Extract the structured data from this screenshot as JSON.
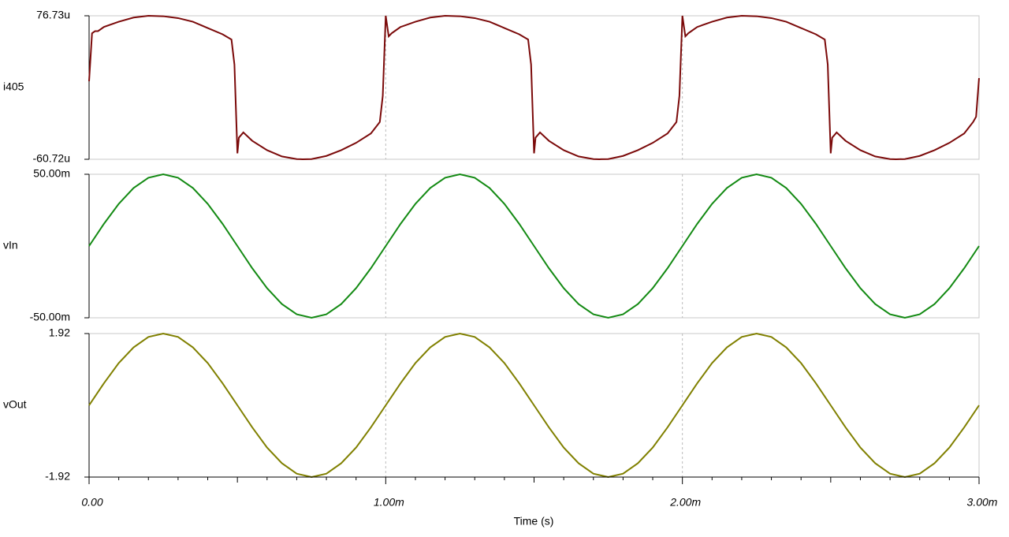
{
  "chart_data": [
    {
      "type": "line",
      "x": [
        0,
        0.01,
        0.02,
        0.03,
        0.05,
        0.1,
        0.15,
        0.2,
        0.25,
        0.3,
        0.35,
        0.4,
        0.45,
        0.48,
        0.49,
        0.5,
        0.505,
        0.52,
        0.55,
        0.6,
        0.65,
        0.7,
        0.72,
        0.75,
        0.8,
        0.85,
        0.9,
        0.95,
        0.98,
        0.99,
        1,
        1.01,
        1.02,
        1.03,
        1.05,
        1.1,
        1.15,
        1.2,
        1.25,
        1.3,
        1.35,
        1.4,
        1.45,
        1.48,
        1.49,
        1.5,
        1.505,
        1.52,
        1.55,
        1.6,
        1.65,
        1.7,
        1.72,
        1.75,
        1.8,
        1.85,
        1.9,
        1.95,
        1.98,
        1.99,
        2,
        2.01,
        2.02,
        2.03,
        2.05,
        2.1,
        2.15,
        2.2,
        2.25,
        2.3,
        2.35,
        2.4,
        2.45,
        2.48,
        2.49,
        2.5,
        2.505,
        2.52,
        2.55,
        2.6,
        2.65,
        2.7,
        2.72,
        2.75,
        2.8,
        2.85,
        2.9,
        2.95,
        2.98,
        2.99,
        3
      ],
      "series": [
        {
          "name": "i405",
          "color": "#7b0a0a",
          "values": [
            14,
            60,
            62,
            62,
            66,
            71,
            75,
            76.7,
            76.3,
            74.5,
            71,
            65,
            59,
            54,
            30,
            -55,
            -40,
            -35,
            -43,
            -52,
            -58,
            -60.5,
            -60.7,
            -60.5,
            -57.5,
            -52,
            -45,
            -36,
            -25,
            0,
            76.7,
            57,
            60,
            62,
            66,
            71,
            75,
            76.7,
            76.3,
            74.5,
            71,
            65,
            59,
            54,
            30,
            -55,
            -40,
            -35,
            -43,
            -52,
            -58,
            -60.5,
            -60.7,
            -60.5,
            -57.5,
            -52,
            -45,
            -36,
            -25,
            0,
            76.7,
            57,
            60,
            62,
            66,
            71,
            75,
            76.7,
            76.3,
            74.5,
            71,
            65,
            59,
            54,
            30,
            -55,
            -40,
            -35,
            -43,
            -52,
            -58,
            -60.5,
            -60.7,
            -60.5,
            -57.5,
            -52,
            -45,
            -36,
            -25,
            -20,
            17
          ]
        }
      ],
      "ylim": [
        -60.72,
        76.73
      ],
      "yticks": [
        {
          "value": -60.72,
          "label": "-60.72u"
        },
        {
          "value": 76.73,
          "label": "76.73u"
        }
      ]
    },
    {
      "type": "line",
      "x": [
        0,
        0.05,
        0.1,
        0.15,
        0.2,
        0.25,
        0.3,
        0.35,
        0.4,
        0.45,
        0.5,
        0.55,
        0.6,
        0.65,
        0.7,
        0.75,
        0.8,
        0.85,
        0.9,
        0.95,
        1,
        1.05,
        1.1,
        1.15,
        1.2,
        1.25,
        1.3,
        1.35,
        1.4,
        1.45,
        1.5,
        1.55,
        1.6,
        1.65,
        1.7,
        1.75,
        1.8,
        1.85,
        1.9,
        1.95,
        2,
        2.05,
        2.1,
        2.15,
        2.2,
        2.25,
        2.3,
        2.35,
        2.4,
        2.45,
        2.5,
        2.55,
        2.6,
        2.65,
        2.7,
        2.75,
        2.8,
        2.85,
        2.9,
        2.95,
        3
      ],
      "series": [
        {
          "name": "vIn",
          "color": "#138a13",
          "values": [
            0,
            15.45,
            29.39,
            40.45,
            47.55,
            50,
            47.55,
            40.45,
            29.39,
            15.45,
            0,
            -15.45,
            -29.39,
            -40.45,
            -47.55,
            -50,
            -47.55,
            -40.45,
            -29.39,
            -15.45,
            0,
            15.45,
            29.39,
            40.45,
            47.55,
            50,
            47.55,
            40.45,
            29.39,
            15.45,
            0,
            -15.45,
            -29.39,
            -40.45,
            -47.55,
            -50,
            -47.55,
            -40.45,
            -29.39,
            -15.45,
            0,
            15.45,
            29.39,
            40.45,
            47.55,
            50,
            47.55,
            40.45,
            29.39,
            15.45,
            0,
            -15.45,
            -29.39,
            -40.45,
            -47.55,
            -50,
            -47.55,
            -40.45,
            -29.39,
            -15.45,
            0
          ]
        }
      ],
      "ylim": [
        -50,
        50
      ],
      "yticks": [
        {
          "value": -50,
          "label": "-50.00m"
        },
        {
          "value": 50,
          "label": "50.00m"
        }
      ]
    },
    {
      "type": "line",
      "x": [
        0,
        0.05,
        0.1,
        0.15,
        0.2,
        0.25,
        0.3,
        0.35,
        0.4,
        0.45,
        0.5,
        0.55,
        0.6,
        0.65,
        0.7,
        0.75,
        0.8,
        0.85,
        0.9,
        0.95,
        1,
        1.05,
        1.1,
        1.15,
        1.2,
        1.25,
        1.3,
        1.35,
        1.4,
        1.45,
        1.5,
        1.55,
        1.6,
        1.65,
        1.7,
        1.75,
        1.8,
        1.85,
        1.9,
        1.95,
        2,
        2.05,
        2.1,
        2.15,
        2.2,
        2.25,
        2.3,
        2.35,
        2.4,
        2.45,
        2.5,
        2.55,
        2.6,
        2.65,
        2.7,
        2.75,
        2.8,
        2.85,
        2.9,
        2.95,
        3
      ],
      "series": [
        {
          "name": "vOut",
          "color": "#808000",
          "values": [
            0,
            0.59,
            1.13,
            1.55,
            1.83,
            1.92,
            1.83,
            1.55,
            1.13,
            0.59,
            0,
            -0.59,
            -1.13,
            -1.55,
            -1.83,
            -1.92,
            -1.83,
            -1.55,
            -1.13,
            -0.59,
            0,
            0.59,
            1.13,
            1.55,
            1.83,
            1.92,
            1.83,
            1.55,
            1.13,
            0.59,
            0,
            -0.59,
            -1.13,
            -1.55,
            -1.83,
            -1.92,
            -1.83,
            -1.55,
            -1.13,
            -0.59,
            0,
            0.59,
            1.13,
            1.55,
            1.83,
            1.92,
            1.83,
            1.55,
            1.13,
            0.59,
            0,
            -0.59,
            -1.13,
            -1.55,
            -1.83,
            -1.92,
            -1.83,
            -1.55,
            -1.13,
            -0.59,
            0
          ]
        }
      ],
      "ylim": [
        -1.92,
        1.92
      ],
      "yticks": [
        -1.92,
        1.92
      ],
      "xlim": [
        0,
        3
      ],
      "xticks": [
        {
          "value": 0,
          "label": "0.00"
        },
        {
          "value": 1,
          "label": "1.00m"
        },
        {
          "value": 2,
          "label": "2.00m"
        },
        {
          "value": 3,
          "label": "3.00m"
        }
      ],
      "xlabel": "Time (s)"
    }
  ]
}
